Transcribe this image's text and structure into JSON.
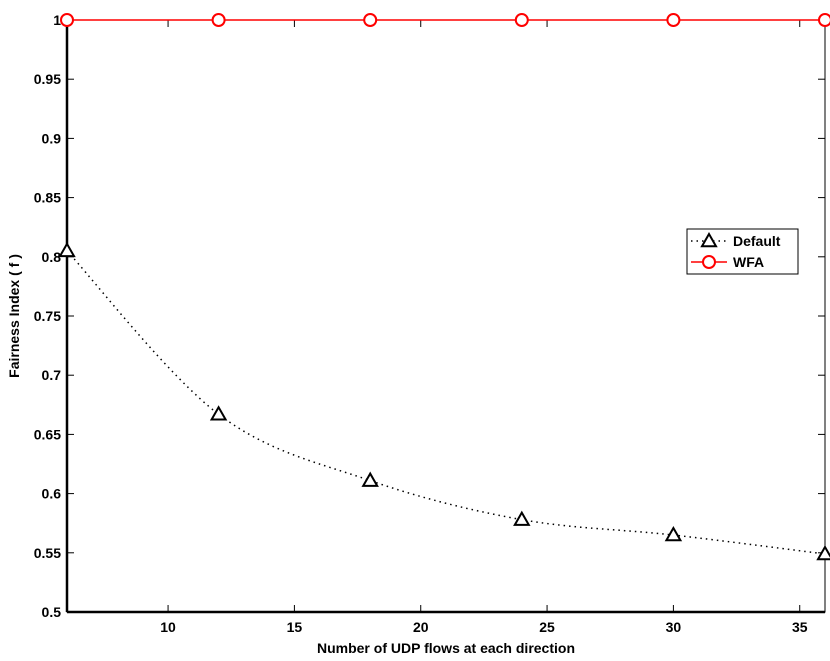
{
  "chart_data": {
    "type": "line",
    "xlabel": "Number of UDP flows at each direction",
    "ylabel": "Fairness Index ( f )",
    "xlim": [
      6,
      36
    ],
    "ylim": [
      0.5,
      1.0
    ],
    "xticks": [
      10,
      15,
      20,
      25,
      30,
      35
    ],
    "yticks": [
      0.5,
      0.55,
      0.6,
      0.65,
      0.7,
      0.75,
      0.8,
      0.85,
      0.9,
      0.95,
      1
    ],
    "ytick_labels": [
      "0.5",
      "0.55",
      "0.6",
      "0.65",
      "0.7",
      "0.75",
      "0.8",
      "0.85",
      "0.9",
      "0.95",
      "1"
    ],
    "x": [
      6,
      12,
      18,
      24,
      30,
      36
    ],
    "series": [
      {
        "name": "Default",
        "values": [
          0.805,
          0.667,
          0.611,
          0.578,
          0.565,
          0.549
        ],
        "color": "#000000",
        "line_style": "dotted",
        "marker": "triangle"
      },
      {
        "name": "WFA",
        "values": [
          1.0,
          1.0,
          1.0,
          1.0,
          1.0,
          1.0
        ],
        "color": "#ff0000",
        "line_style": "solid",
        "marker": "circle"
      }
    ],
    "legend_position": "right",
    "grid": false
  }
}
